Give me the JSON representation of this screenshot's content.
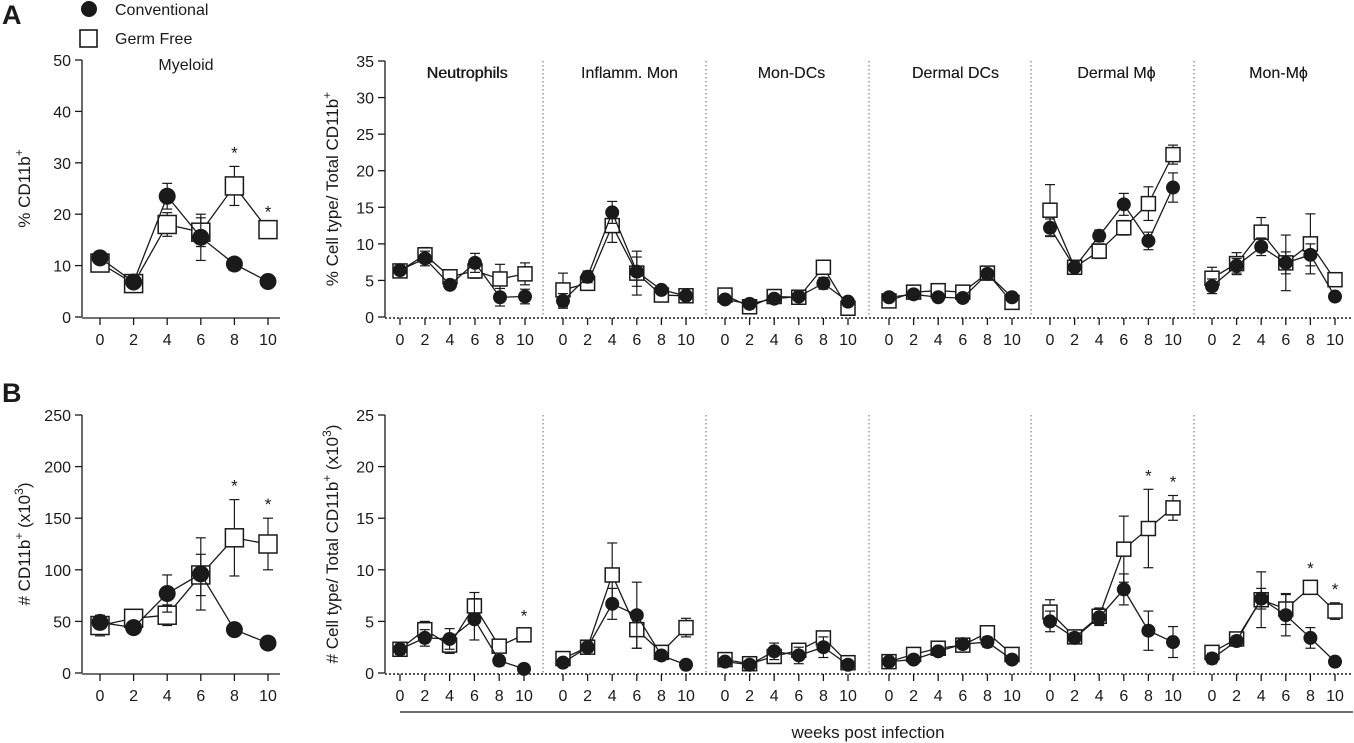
{
  "figure": {
    "panel_labels": [
      "A",
      "B"
    ],
    "legend": [
      {
        "label": "Conventional",
        "marker": "filled-circle"
      },
      {
        "label": "Germ Free",
        "marker": "open-square"
      }
    ],
    "shared_xlabel": "weeks post infection",
    "weeks": [
      "0",
      "2",
      "4",
      "6",
      "8",
      "10"
    ],
    "colors": {
      "ink": "#1a1a1a",
      "background": "#ffffff",
      "divider": "#666666"
    }
  },
  "chart_data": [
    {
      "id": "A-myeloid",
      "panel": "A",
      "type": "line",
      "title": "Myeloid",
      "ylabel": "% CD11b",
      "ylabel_sup": "+",
      "xlabel": "",
      "ylim": [
        0,
        50
      ],
      "yticks": [
        "0",
        "10",
        "20",
        "30",
        "40",
        "50"
      ],
      "x": [
        0,
        2,
        4,
        6,
        8,
        10
      ],
      "series": [
        {
          "name": "Conventional",
          "values": [
            11.5,
            6.8,
            23.5,
            15.5,
            10.3,
            6.9
          ],
          "errors": [
            1.2,
            0.6,
            2.5,
            4.5,
            0.6,
            0.8
          ]
        },
        {
          "name": "Germ Free",
          "values": [
            10.5,
            6.5,
            18.0,
            16.5,
            25.5,
            17.0
          ],
          "errors": [
            1.0,
            0.8,
            2.3,
            2.8,
            3.8,
            0.8
          ]
        }
      ],
      "significance": [
        "",
        "",
        "",
        "",
        "*",
        "*"
      ]
    },
    {
      "id": "A-subsets",
      "panel": "A",
      "type": "line",
      "ylabel": "% Cell type/ Total CD11b",
      "ylabel_sup": "+",
      "ylim": [
        0,
        35
      ],
      "yticks": [
        "0",
        "5",
        "10",
        "15",
        "20",
        "25",
        "30",
        "35"
      ],
      "x": [
        0,
        2,
        4,
        6,
        8,
        10
      ],
      "groups": [
        {
          "name": "Neutrophils",
          "series": [
            {
              "name": "Conventional",
              "values": [
                6.4,
                8.0,
                4.4,
                7.4,
                2.7,
                2.8
              ],
              "errors": [
                0.5,
                1.0,
                0.6,
                1.3,
                1.2,
                1.0
              ]
            },
            {
              "name": "Germ Free",
              "values": [
                6.3,
                8.5,
                5.5,
                6.3,
                5.2,
                5.9
              ],
              "errors": [
                0.6,
                1.0,
                0.8,
                1.0,
                2.0,
                1.5
              ]
            }
          ],
          "significance": [
            "",
            "",
            "",
            "",
            "",
            ""
          ]
        },
        {
          "name": "Inflamm. Mon",
          "series": [
            {
              "name": "Conventional",
              "values": [
                2.2,
                5.5,
                14.3,
                6.2,
                3.7,
                2.9
              ],
              "errors": [
                1.0,
                0.8,
                1.5,
                2.0,
                0.6,
                0.5
              ]
            },
            {
              "name": "Germ Free",
              "values": [
                3.7,
                4.6,
                12.5,
                6.0,
                3.0,
                2.9
              ],
              "errors": [
                2.3,
                0.8,
                2.3,
                3.0,
                0.8,
                0.5
              ]
            }
          ],
          "significance": [
            "",
            "",
            "",
            "",
            "",
            ""
          ]
        },
        {
          "name": "Mon-DCs",
          "series": [
            {
              "name": "Conventional",
              "values": [
                2.4,
                1.8,
                2.5,
                2.8,
                4.6,
                2.1
              ],
              "errors": [
                0.4,
                0.3,
                0.3,
                0.4,
                0.8,
                0.5
              ]
            },
            {
              "name": "Germ Free",
              "values": [
                3.0,
                1.4,
                2.8,
                2.7,
                6.8,
                1.2
              ],
              "errors": [
                0.5,
                0.5,
                0.5,
                0.5,
                0.8,
                0.6
              ]
            }
          ],
          "significance": [
            "",
            "",
            "",
            "",
            "",
            ""
          ]
        },
        {
          "name": "Dermal DCs",
          "series": [
            {
              "name": "Conventional",
              "values": [
                2.7,
                3.1,
                2.7,
                2.6,
                5.9,
                2.7
              ],
              "errors": [
                0.3,
                0.4,
                0.5,
                0.3,
                0.5,
                0.5
              ]
            },
            {
              "name": "Germ Free",
              "values": [
                2.2,
                3.4,
                3.6,
                3.4,
                6.0,
                2.0
              ],
              "errors": [
                0.4,
                0.5,
                0.6,
                0.4,
                0.5,
                0.5
              ]
            }
          ],
          "significance": [
            "",
            "",
            "",
            "",
            "",
            ""
          ]
        },
        {
          "name": "Dermal Mϕ",
          "series": [
            {
              "name": "Conventional",
              "values": [
                12.2,
                6.8,
                11.1,
                15.4,
                10.4,
                17.7
              ],
              "errors": [
                1.2,
                0.5,
                0.8,
                1.5,
                1.2,
                2.0
              ]
            },
            {
              "name": "Germ Free",
              "values": [
                14.6,
                6.8,
                9.0,
                12.2,
                15.5,
                22.2
              ],
              "errors": [
                3.5,
                0.8,
                1.0,
                1.0,
                2.3,
                1.3
              ]
            }
          ],
          "significance": [
            "",
            "",
            "",
            "",
            "",
            ""
          ]
        },
        {
          "name": "Mon-Mϕ",
          "series": [
            {
              "name": "Conventional",
              "values": [
                4.2,
                7.0,
                9.6,
                7.4,
                8.5,
                2.8
              ],
              "errors": [
                1.0,
                1.0,
                1.2,
                1.5,
                1.5,
                0.5
              ]
            },
            {
              "name": "Germ Free",
              "values": [
                5.3,
                7.3,
                11.6,
                7.4,
                10.0,
                5.1
              ],
              "errors": [
                1.5,
                1.5,
                2.0,
                3.8,
                4.1,
                0.8
              ]
            }
          ],
          "significance": [
            "",
            "",
            "",
            "",
            "",
            ""
          ]
        }
      ]
    },
    {
      "id": "B-myeloid",
      "panel": "B",
      "type": "line",
      "ylabel": "# CD11b",
      "ylabel_sup": "+",
      "ylabel_suffix": " (x10",
      "ylabel_suffix_sup": "3",
      "ylabel_close": ")",
      "ylim": [
        0,
        250
      ],
      "yticks": [
        "0",
        "50",
        "100",
        "150",
        "200",
        "250"
      ],
      "x": [
        0,
        2,
        4,
        6,
        8,
        10
      ],
      "series": [
        {
          "name": "Conventional",
          "values": [
            49,
            44,
            77,
            96,
            42,
            29
          ],
          "errors": [
            4,
            3,
            18,
            35,
            4,
            4
          ]
        },
        {
          "name": "Germ Free",
          "values": [
            46,
            53,
            56,
            95,
            131,
            125
          ],
          "errors": [
            10,
            4,
            10,
            20,
            37,
            25
          ]
        }
      ],
      "significance": [
        "",
        "",
        "",
        "",
        "*",
        "*"
      ]
    },
    {
      "id": "B-subsets",
      "panel": "B",
      "type": "line",
      "ylabel": "# Cell type/ Total CD11b",
      "ylabel_sup": "+",
      "ylabel_suffix": " (x10",
      "ylabel_suffix_sup": "3",
      "ylabel_close": ")",
      "ylim": [
        0,
        25
      ],
      "yticks": [
        "0",
        "5",
        "10",
        "15",
        "20",
        "25"
      ],
      "x": [
        0,
        2,
        4,
        6,
        8,
        10
      ],
      "groups": [
        {
          "name": "Neutrophils",
          "series": [
            {
              "name": "Conventional",
              "values": [
                2.3,
                3.4,
                3.3,
                5.2,
                1.2,
                0.4
              ],
              "errors": [
                0.5,
                0.8,
                1.0,
                2.0,
                0.5,
                0.2
              ]
            },
            {
              "name": "Germ Free",
              "values": [
                2.3,
                4.2,
                2.7,
                6.5,
                2.6,
                3.7
              ],
              "errors": [
                0.6,
                0.8,
                0.8,
                1.3,
                0.5,
                0.5
              ]
            }
          ],
          "significance": [
            "",
            "",
            "",
            "",
            "",
            "*"
          ]
        },
        {
          "name": "Inflamm. Mon",
          "series": [
            {
              "name": "Conventional",
              "values": [
                1.0,
                2.5,
                6.7,
                5.6,
                1.7,
                0.8
              ],
              "errors": [
                0.3,
                0.5,
                1.5,
                3.2,
                0.4,
                0.2
              ]
            },
            {
              "name": "Germ Free",
              "values": [
                1.4,
                2.5,
                9.5,
                4.2,
                2.0,
                4.4
              ],
              "errors": [
                0.3,
                0.5,
                3.1,
                1.8,
                0.4,
                0.9
              ]
            }
          ],
          "significance": [
            "",
            "",
            "",
            "",
            "",
            ""
          ]
        },
        {
          "name": "Mon-DCs",
          "series": [
            {
              "name": "Conventional",
              "values": [
                1.1,
                0.8,
                2.1,
                1.7,
                2.5,
                0.8
              ],
              "errors": [
                0.3,
                0.2,
                0.8,
                0.8,
                1.0,
                0.4
              ]
            },
            {
              "name": "Germ Free",
              "values": [
                1.3,
                0.9,
                1.6,
                2.2,
                3.4,
                1.0
              ],
              "errors": [
                0.3,
                0.2,
                0.5,
                0.6,
                0.5,
                0.4
              ]
            }
          ],
          "significance": [
            "",
            "",
            "",
            "",
            "",
            ""
          ]
        },
        {
          "name": "Dermal DCs",
          "series": [
            {
              "name": "Conventional",
              "values": [
                1.1,
                1.3,
                2.1,
                2.8,
                3.0,
                1.3
              ],
              "errors": [
                0.2,
                0.3,
                0.4,
                0.3,
                0.5,
                0.3
              ]
            },
            {
              "name": "Germ Free",
              "values": [
                1.1,
                1.8,
                2.4,
                2.7,
                3.9,
                1.8
              ],
              "errors": [
                0.2,
                0.3,
                0.5,
                0.3,
                0.5,
                0.4
              ]
            }
          ],
          "significance": [
            "",
            "",
            "",
            "",
            "",
            ""
          ]
        },
        {
          "name": "Dermal Mϕ",
          "series": [
            {
              "name": "Conventional",
              "values": [
                5.0,
                3.4,
                5.4,
                8.1,
                4.1,
                3.0
              ],
              "errors": [
                1.0,
                0.5,
                0.8,
                1.5,
                1.9,
                1.5
              ]
            },
            {
              "name": "Germ Free",
              "values": [
                5.9,
                3.5,
                5.5,
                12.0,
                14.0,
                16.0
              ],
              "errors": [
                1.2,
                0.5,
                0.8,
                3.2,
                3.8,
                1.2
              ]
            }
          ],
          "significance": [
            "",
            "",
            "",
            "",
            "*",
            "*"
          ]
        },
        {
          "name": "Mon-Mϕ",
          "series": [
            {
              "name": "Conventional",
              "values": [
                1.4,
                3.1,
                7.2,
                5.6,
                3.4,
                1.1
              ],
              "errors": [
                0.5,
                0.5,
                1.0,
                2.0,
                1.0,
                0.3
              ]
            },
            {
              "name": "Germ Free",
              "values": [
                2.0,
                3.3,
                7.1,
                6.2,
                8.3,
                6.0
              ],
              "errors": [
                0.5,
                0.5,
                2.7,
                1.5,
                0.5,
                0.8
              ]
            }
          ],
          "significance": [
            "",
            "",
            "",
            "",
            "*",
            "*"
          ]
        }
      ]
    }
  ]
}
